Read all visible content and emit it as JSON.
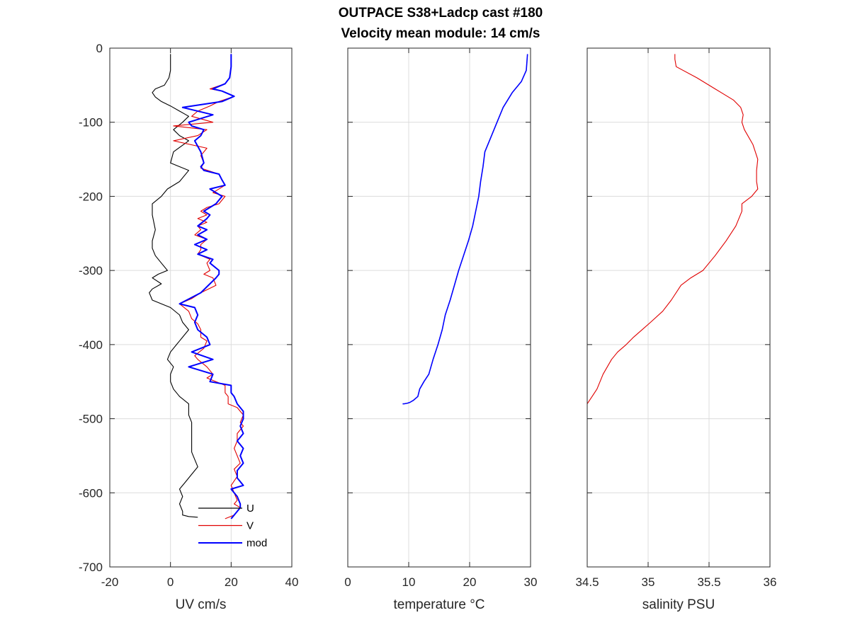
{
  "figure": {
    "title_line1": "OUTPACE S38+Ladcp cast #180",
    "title_line2": "Velocity mean module:  14 cm/s"
  },
  "chart_data": [
    {
      "type": "line",
      "id": "velocity",
      "xlabel": "UV cm/s",
      "ylabel": "",
      "xlim": [
        -20,
        40
      ],
      "ylim": [
        -700,
        0
      ],
      "xticks": [
        -20,
        0,
        20,
        40
      ],
      "yticks": [
        0,
        -100,
        -200,
        -300,
        -400,
        -500,
        -600,
        -700
      ],
      "grid": true,
      "legend": {
        "placement": "bottom-right"
      },
      "series": [
        {
          "name": "U",
          "color": "#000000",
          "x": [
            0,
            0,
            -0.5,
            -2,
            -5,
            -6,
            -5,
            -3,
            0,
            3,
            6,
            4,
            1,
            3,
            6,
            1,
            0,
            3,
            6,
            3,
            -1,
            -3,
            -6,
            -6,
            -5,
            -6,
            -6,
            -5,
            -3,
            -1,
            -4,
            -6,
            -3,
            -6,
            -7,
            -6,
            -3,
            0,
            3,
            4,
            6,
            4,
            2,
            0,
            -1,
            1,
            0,
            0,
            1,
            3,
            6,
            6,
            7,
            7,
            7,
            7,
            8,
            9,
            7,
            5,
            3,
            4,
            3,
            4,
            4,
            6,
            9
          ],
          "y": [
            -8,
            -30,
            -40,
            -50,
            -55,
            -60,
            -66,
            -72,
            -78,
            -85,
            -92,
            -100,
            -110,
            -118,
            -125,
            -140,
            -155,
            -160,
            -165,
            -180,
            -190,
            -200,
            -210,
            -225,
            -245,
            -260,
            -270,
            -280,
            -290,
            -300,
            -305,
            -310,
            -318,
            -325,
            -330,
            -340,
            -345,
            -350,
            -360,
            -370,
            -380,
            -390,
            -400,
            -410,
            -420,
            -430,
            -440,
            -450,
            -460,
            -470,
            -480,
            -495,
            -505,
            -520,
            -535,
            -545,
            -555,
            -565,
            -575,
            -585,
            -595,
            -605,
            -615,
            -625,
            -630,
            -632,
            -633
          ]
        },
        {
          "name": "V",
          "color": "#e00000",
          "x": [
            20,
            20,
            19.5,
            18,
            13,
            17,
            21,
            16,
            13,
            9,
            7,
            14,
            1,
            12,
            9,
            1,
            12,
            10,
            11,
            10,
            16,
            17,
            18,
            14,
            18,
            16,
            12,
            10,
            12,
            9,
            12,
            9,
            10,
            8,
            12,
            10,
            10,
            9,
            13,
            12,
            13,
            11,
            14,
            15,
            10,
            7,
            3,
            6,
            7,
            9,
            10,
            10,
            12,
            11,
            8,
            9,
            12,
            14,
            12,
            18,
            18,
            19,
            19,
            22,
            23,
            24,
            23,
            24,
            22,
            22,
            21,
            22,
            23,
            21,
            22,
            20,
            21,
            22,
            21,
            23,
            22,
            21,
            18
          ],
          "y": [
            -8,
            -25,
            -40,
            -48,
            -55,
            -58,
            -65,
            -72,
            -78,
            -85,
            -92,
            -100,
            -105,
            -110,
            -118,
            -125,
            -135,
            -145,
            -155,
            -162,
            -170,
            -178,
            -185,
            -195,
            -200,
            -210,
            -215,
            -220,
            -225,
            -230,
            -235,
            -240,
            -245,
            -252,
            -258,
            -265,
            -272,
            -278,
            -285,
            -290,
            -300,
            -305,
            -310,
            -320,
            -330,
            -338,
            -345,
            -355,
            -365,
            -372,
            -380,
            -390,
            -395,
            -405,
            -415,
            -420,
            -430,
            -440,
            -445,
            -455,
            -465,
            -470,
            -480,
            -485,
            -490,
            -495,
            -505,
            -510,
            -520,
            -530,
            -540,
            -550,
            -560,
            -568,
            -578,
            -590,
            -600,
            -610,
            -615,
            -620,
            -625,
            -630,
            -635
          ]
        },
        {
          "name": "mod",
          "color": "#0000ff",
          "x": [
            20,
            20,
            19.5,
            18,
            14,
            17,
            21,
            17,
            4,
            14,
            6,
            7,
            11,
            10,
            8,
            10,
            11,
            10,
            11,
            16,
            17,
            18,
            13,
            17,
            15,
            11,
            13,
            12,
            9,
            12,
            9,
            12,
            8,
            12,
            9,
            14,
            13,
            16,
            16,
            15,
            10,
            3,
            8,
            9,
            8,
            9,
            12,
            13,
            7,
            14,
            6,
            14,
            13,
            20,
            20,
            21,
            22,
            24,
            24,
            23,
            24,
            22,
            24,
            23,
            24,
            22,
            22,
            24,
            20,
            22,
            23,
            23,
            21,
            20
          ],
          "y": [
            -8,
            -25,
            -40,
            -48,
            -55,
            -58,
            -65,
            -72,
            -80,
            -90,
            -100,
            -105,
            -110,
            -118,
            -125,
            -140,
            -155,
            -160,
            -165,
            -170,
            -178,
            -185,
            -190,
            -200,
            -210,
            -220,
            -225,
            -230,
            -240,
            -245,
            -252,
            -258,
            -265,
            -272,
            -278,
            -285,
            -290,
            -300,
            -305,
            -310,
            -330,
            -345,
            -350,
            -360,
            -370,
            -380,
            -390,
            -400,
            -410,
            -420,
            -430,
            -440,
            -450,
            -455,
            -465,
            -470,
            -480,
            -490,
            -500,
            -510,
            -520,
            -530,
            -540,
            -550,
            -560,
            -570,
            -580,
            -590,
            -595,
            -605,
            -615,
            -620,
            -630,
            -635
          ]
        }
      ]
    },
    {
      "type": "line",
      "id": "temperature",
      "xlabel": "temperature °C",
      "ylabel": "",
      "xlim": [
        0,
        30
      ],
      "ylim": [
        -700,
        0
      ],
      "xticks": [
        0,
        10,
        20,
        30
      ],
      "grid": true,
      "series": [
        {
          "color": "#0000ff",
          "x": [
            29.5,
            29.3,
            28.5,
            27,
            25.5,
            24.5,
            23.5,
            22.5,
            22.2,
            21.8,
            21.5,
            21,
            20.5,
            19.8,
            19,
            18.2,
            17.5,
            16.8,
            16,
            15.5,
            14.8,
            14,
            13.3,
            12.5,
            11.8,
            11.5,
            10.8,
            10.2,
            9.8,
            9.5,
            9.2,
            9
          ],
          "y": [
            -8,
            -30,
            -45,
            -60,
            -80,
            -100,
            -120,
            -140,
            -160,
            -180,
            -200,
            -220,
            -240,
            -260,
            -280,
            -300,
            -320,
            -340,
            -360,
            -380,
            -400,
            -420,
            -440,
            -450,
            -460,
            -470,
            -475,
            -478,
            -479,
            -479.5,
            -480,
            -480
          ]
        }
      ]
    },
    {
      "type": "line",
      "id": "salinity",
      "xlabel": "salinity PSU",
      "ylabel": "",
      "xlim": [
        34.5,
        36
      ],
      "ylim": [
        -700,
        0
      ],
      "xticks": [
        34.5,
        35,
        35.5,
        36
      ],
      "xticklabels": [
        "34.5",
        "35",
        "35.5",
        "36"
      ],
      "grid": true,
      "series": [
        {
          "color": "#e00000",
          "x": [
            35.22,
            35.22,
            35.23,
            35.4,
            35.55,
            35.7,
            35.76,
            35.78,
            35.77,
            35.79,
            35.86,
            35.9,
            35.89,
            35.89,
            35.9,
            35.85,
            35.77,
            35.77,
            35.72,
            35.64,
            35.55,
            35.45,
            35.35,
            35.27,
            35.19,
            35.12,
            35.02,
            34.95,
            34.88,
            34.82,
            34.75,
            34.7,
            34.63,
            34.58,
            34.54,
            34.5
          ],
          "y": [
            -8,
            -15,
            -25,
            -40,
            -55,
            -70,
            -80,
            -90,
            -100,
            -110,
            -130,
            -150,
            -165,
            -180,
            -190,
            -200,
            -210,
            -220,
            -240,
            -260,
            -280,
            -300,
            -310,
            -320,
            -340,
            -355,
            -370,
            -380,
            -390,
            -400,
            -410,
            -420,
            -440,
            -460,
            -470,
            -480
          ]
        }
      ]
    }
  ]
}
